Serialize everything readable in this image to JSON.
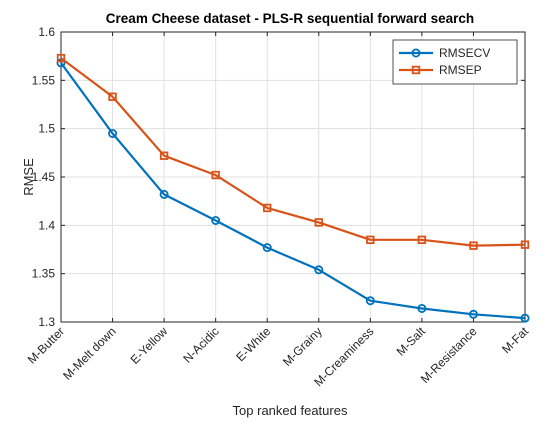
{
  "chart_data": {
    "type": "line",
    "title": "Cream Cheese dataset - PLS-R sequential forward search",
    "xlabel": "Top ranked features",
    "ylabel": "RMSE",
    "categories": [
      "M-Butter",
      "M-Melt down",
      "E-Yellow",
      "N-Acidic",
      "E-White",
      "M-Grainy",
      "M-Creaminess",
      "M-Salt",
      "M-Resistance",
      "M-Fat"
    ],
    "ylim": [
      1.3,
      1.6
    ],
    "yticks": [
      1.3,
      1.35,
      1.4,
      1.45,
      1.5,
      1.55,
      1.6
    ],
    "grid": true,
    "legend_position": "top-right",
    "series": [
      {
        "name": "RMSECV",
        "color": "#0072BD",
        "marker": "circle",
        "values": [
          1.568,
          1.495,
          1.432,
          1.405,
          1.377,
          1.354,
          1.322,
          1.314,
          1.308,
          1.304
        ]
      },
      {
        "name": "RMSEP",
        "color": "#D95319",
        "marker": "square",
        "values": [
          1.573,
          1.533,
          1.472,
          1.452,
          1.418,
          1.403,
          1.385,
          1.385,
          1.379,
          1.38
        ]
      }
    ]
  }
}
